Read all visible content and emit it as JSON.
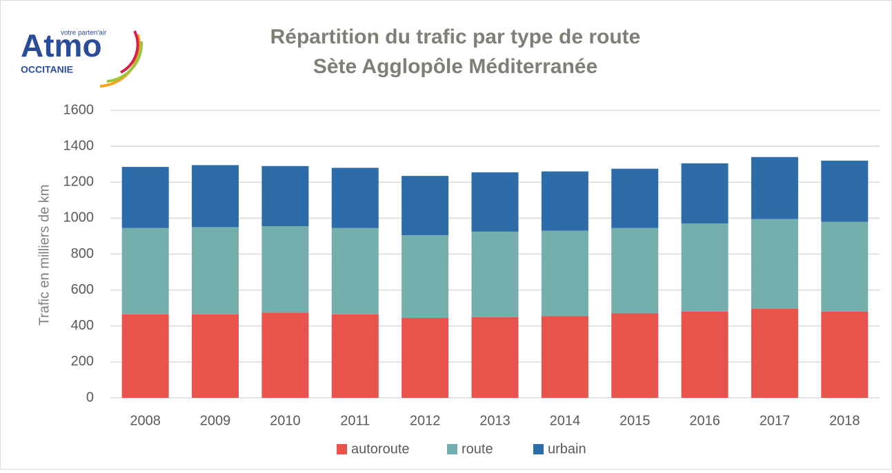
{
  "logo": {
    "name": "Atmo",
    "tagline": "votre parten'air",
    "region": "OCCITANIE"
  },
  "chart_data": {
    "type": "stacked_bar",
    "title": [
      "Répartition du trafic par type de route",
      "Sète Agglopôle Méditerranée"
    ],
    "ylabel": "Trafic en milliers de km",
    "categories": [
      "2008",
      "2009",
      "2010",
      "2011",
      "2012",
      "2013",
      "2014",
      "2015",
      "2016",
      "2017",
      "2018"
    ],
    "series": [
      {
        "name": "autoroute",
        "color": "#e8534c",
        "values": [
          465,
          465,
          475,
          465,
          445,
          450,
          455,
          470,
          480,
          495,
          480
        ]
      },
      {
        "name": "route",
        "color": "#74afae",
        "values": [
          480,
          485,
          480,
          480,
          460,
          475,
          475,
          475,
          490,
          500,
          500
        ]
      },
      {
        "name": "urbain",
        "color": "#2d6ca8",
        "values": [
          340,
          345,
          335,
          335,
          330,
          330,
          330,
          330,
          335,
          345,
          340
        ]
      }
    ],
    "ylim": [
      0,
      1600
    ],
    "yticks": [
      0,
      200,
      400,
      600,
      800,
      1000,
      1200,
      1400,
      1600
    ],
    "grid": true,
    "legend": "bottom"
  }
}
